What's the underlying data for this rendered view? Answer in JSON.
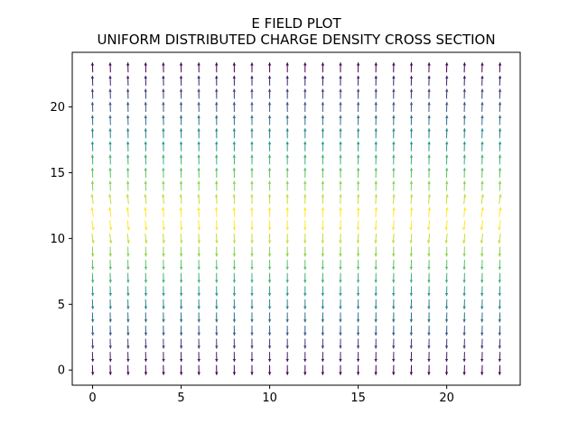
{
  "chart_data": {
    "type": "quiver",
    "title_line1": "E FIELD PLOT",
    "title_line2": "UNIFORM DISTRIBUTED CHARGE DENSITY CROSS SECTION",
    "xlabel": "",
    "ylabel": "",
    "grid": false,
    "legend": "none",
    "xlim": [
      -1.15,
      24.15
    ],
    "ylim": [
      -1.15,
      24.15
    ],
    "x_ticks": [
      0,
      5,
      10,
      15,
      20
    ],
    "y_ticks": [
      0,
      5,
      10,
      15,
      20
    ],
    "x_tick_labels": [
      "0",
      "5",
      "10",
      "15",
      "20"
    ],
    "y_tick_labels": [
      "0",
      "5",
      "10",
      "15",
      "20"
    ],
    "grid_x": {
      "start": 0,
      "stop": 23,
      "step": 1
    },
    "grid_y": {
      "start": 0,
      "stop": 23,
      "step": 1
    },
    "charge_center_y": 11.5,
    "field_direction": "pointing away from the charge layer centred at y = 11.5",
    "colormap": "viridis",
    "color_stops": [
      "#440154",
      "#3b528b",
      "#21918c",
      "#5ec962",
      "#fde725"
    ],
    "color_rule": "brightest (yellow) near y = 11.5, darkest (purple) at y = 0 and y = 23"
  }
}
